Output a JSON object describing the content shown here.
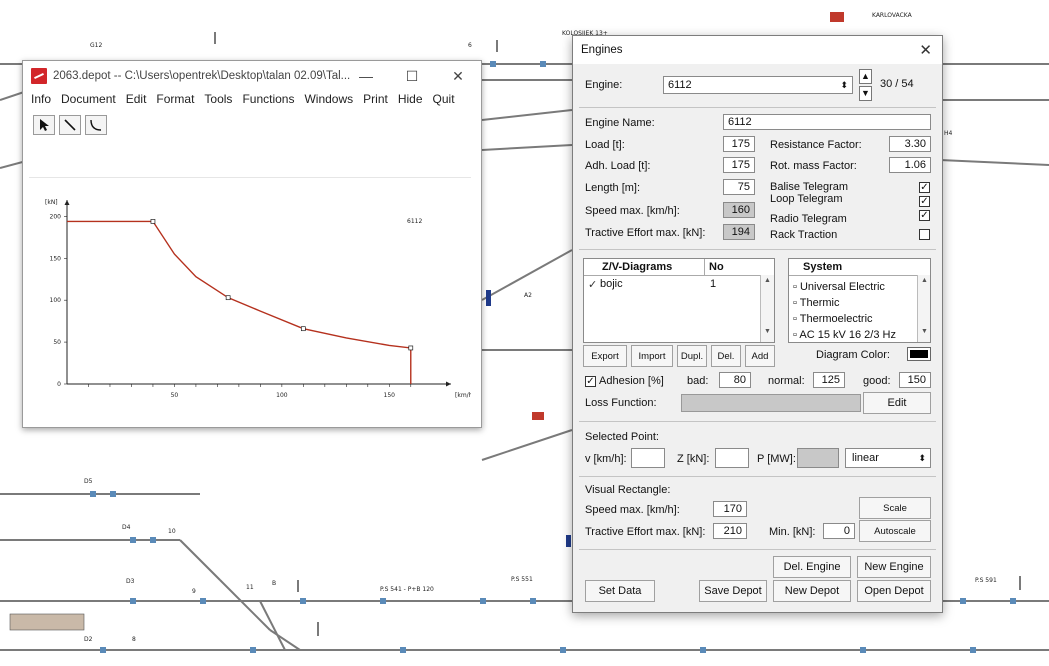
{
  "map_labels": {
    "karlovacka": "KARLOVACKA",
    "g12": "G12",
    "top6": "6",
    "kolosijek": "KOLOSIJEK 13+",
    "h4": "H4",
    "a2": "A2",
    "d5": "D5",
    "d4": "D4",
    "n10": "10",
    "d3": "D3",
    "n9": "9",
    "n11": "11",
    "b": "B",
    "ps541": "P.S 541 - P+B 120",
    "ps551": "P.S 551",
    "ps591": "P.S 591",
    "d2": "D2",
    "n8": "8"
  },
  "main_window": {
    "title": "2063.depot -- C:\\Users\\opentrek\\Desktop\\talan 02.09\\Tal...",
    "minimize": "—",
    "maximize": "☐",
    "close": "✕",
    "menu": [
      "Info",
      "Document",
      "Edit",
      "Format",
      "Tools",
      "Functions",
      "Windows",
      "Print",
      "Hide",
      "Quit"
    ],
    "tools": [
      "pointer-icon",
      "line-tool-icon",
      "curve-tool-icon"
    ]
  },
  "chart_data": {
    "type": "line",
    "title": "6112",
    "ylabel": "[kN]",
    "xlabel": "[km/h]",
    "xlim": [
      0,
      175
    ],
    "ylim": [
      0,
      210
    ],
    "xticks": [
      "50",
      "100",
      "150"
    ],
    "yticks": [
      "0",
      "50",
      "100",
      "150",
      "200"
    ],
    "color": "#b5311e",
    "series": [
      {
        "x": [
          0,
          5,
          10,
          20,
          30,
          40,
          50,
          60,
          75,
          90,
          110,
          130,
          150,
          160,
          160
        ],
        "y": [
          194,
          194,
          194,
          194,
          194,
          194,
          155,
          128,
          103,
          87,
          66,
          55,
          46,
          43,
          0
        ],
        "markers_x": [
          40,
          75,
          110,
          160
        ]
      }
    ]
  },
  "dialog": {
    "title": "Engines",
    "close": "✕",
    "engine_label": "Engine:",
    "engine_value": "6112",
    "counter": "30 / 54",
    "engine_name_label": "Engine Name:",
    "engine_name": "6112",
    "load_label": "Load [t]:",
    "load": "175",
    "adh_load_label": "Adh. Load [t]:",
    "adh_load": "175",
    "length_label": "Length [m]:",
    "length": "75",
    "speed_max_label": "Speed max. [km/h]:",
    "speed_max": "160",
    "tractive_label": "Tractive Effort max. [kN]:",
    "tractive": "194",
    "resistance_label": "Resistance Factor:",
    "resistance": "3.30",
    "rot_mass_label": "Rot. mass Factor:",
    "rot_mass": "1.06",
    "balise_label": "Balise Telegram",
    "loop_label": "Loop Telegram",
    "radio_label": "Radio Telegram",
    "rack_label": "Rack Traction",
    "zv_header": "Z/V-Diagrams",
    "no_header": "No",
    "zv_rows": [
      {
        "name": "bojic",
        "no": "1"
      }
    ],
    "system_header": "System",
    "systems": [
      "Universal Electric",
      "Thermic",
      "Thermoelectric",
      "AC 15 kV 16 2/3 Hz"
    ],
    "btn_export": "Export",
    "btn_import": "Import",
    "btn_dupl": "Dupl.",
    "btn_del": "Del.",
    "btn_add": "Add",
    "diagram_color_label": "Diagram Color:",
    "diagram_color": "#000000",
    "adhesion_label": "Adhesion [%]",
    "bad_label": "bad:",
    "bad": "80",
    "normal_label": "normal:",
    "normal": "125",
    "good_label": "good:",
    "good": "150",
    "loss_label": "Loss Function:",
    "btn_edit": "Edit",
    "selected_point_label": "Selected Point:",
    "v_label": "v [km/h]:",
    "z_label": "Z [kN]:",
    "p_label": "P [MW]:",
    "interp": "linear",
    "visual_rect_label": "Visual Rectangle:",
    "vr_speed_label": "Speed max. [km/h]:",
    "vr_speed": "170",
    "vr_tractive_label": "Tractive Effort max. [kN]:",
    "vr_tractive": "210",
    "min_label": "Min. [kN]:",
    "min": "0",
    "btn_scale": "Scale",
    "btn_autoscale": "Autoscale",
    "btn_del_engine": "Del. Engine",
    "btn_new_engine": "New Engine",
    "btn_set_data": "Set Data",
    "btn_save_depot": "Save Depot",
    "btn_new_depot": "New Depot",
    "btn_open_depot": "Open Depot"
  }
}
